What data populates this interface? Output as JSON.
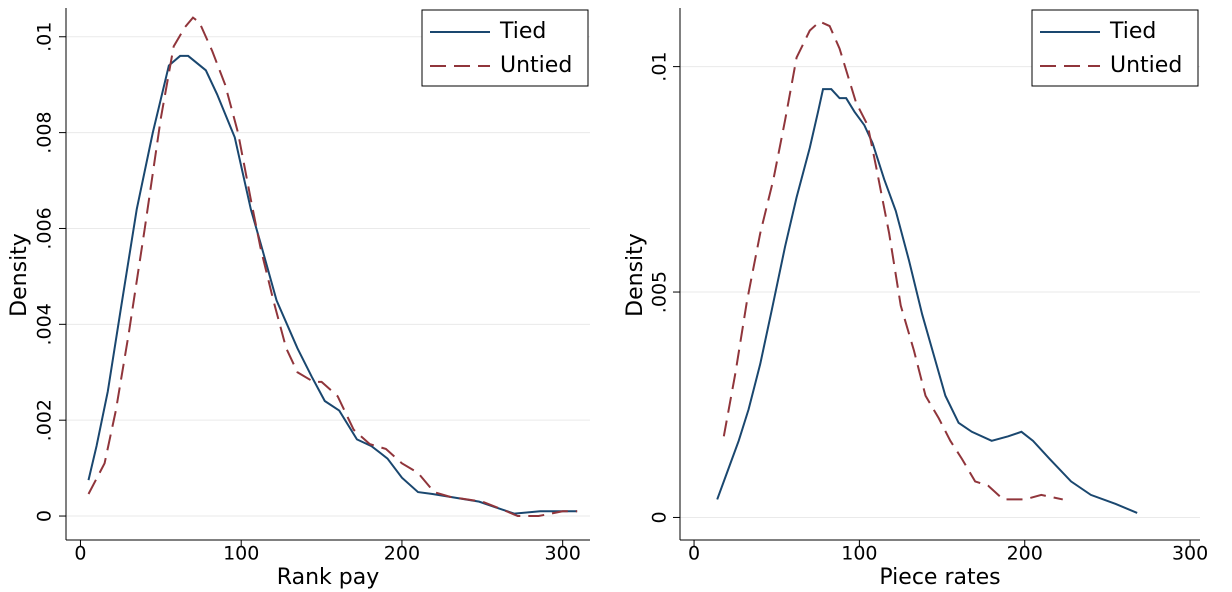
{
  "chart_data": [
    {
      "type": "line",
      "x_label": "Rank pay",
      "y_label": "Density",
      "xlim": [
        -9,
        317
      ],
      "ylim": [
        -0.0005,
        0.0106
      ],
      "xticks": [
        0,
        100,
        200,
        300
      ],
      "yticks": [
        0,
        {
          "value": 0.002,
          "label": ".002"
        },
        {
          "value": 0.004,
          "label": ".004"
        },
        {
          "value": 0.006,
          "label": ".006"
        },
        {
          "value": 0.008,
          "label": ".008"
        },
        {
          "value": 0.01,
          "label": ".01"
        }
      ],
      "grid": true,
      "legend": "top right",
      "series": [
        {
          "name": "Tied",
          "color": "#1a476f",
          "line_style": "solid",
          "x": [
            5,
            10,
            17,
            25,
            35,
            45,
            55,
            62,
            67,
            78,
            85,
            96,
            106,
            112,
            122,
            135,
            144,
            152,
            161,
            172,
            181,
            191,
            200,
            210,
            219,
            230,
            248,
            261,
            270,
            286,
            301,
            309
          ],
          "values": [
            0.00075,
            0.00146,
            0.0026,
            0.0043,
            0.0064,
            0.008,
            0.0094,
            0.0096,
            0.0096,
            0.0093,
            0.0088,
            0.0079,
            0.0064,
            0.0057,
            0.0045,
            0.0035,
            0.0029,
            0.0024,
            0.0022,
            0.0016,
            0.00146,
            0.0012,
            0.0008,
            0.0005,
            0.00046,
            0.0004,
            0.0003,
            0.00015,
            5e-05,
            0.0001,
            0.0001,
            0.0001
          ]
        },
        {
          "name": "Untied",
          "color": "#90353b",
          "line_style": "dashed",
          "x": [
            5,
            15,
            22,
            30,
            40,
            50,
            58,
            65,
            70,
            74,
            82,
            90,
            98,
            106,
            112,
            120,
            128,
            135,
            145,
            150,
            160,
            170,
            180,
            190,
            200,
            210,
            220,
            230,
            250,
            265,
            272,
            285,
            300,
            309
          ],
          "values": [
            0.00046,
            0.0011,
            0.0022,
            0.0038,
            0.006,
            0.0083,
            0.0098,
            0.0102,
            0.0104,
            0.0103,
            0.0097,
            0.009,
            0.008,
            0.0066,
            0.0056,
            0.0045,
            0.0035,
            0.003,
            0.0028,
            0.0028,
            0.0025,
            0.0018,
            0.0015,
            0.0014,
            0.0011,
            0.0009,
            0.0005,
            0.0004,
            0.0003,
            0.0001,
            0,
            0,
            0.0001,
            0.0001
          ]
        }
      ]
    },
    {
      "type": "line",
      "x_label": "Piece rates",
      "y_label": "Density",
      "xlim": [
        -8.5,
        306
      ],
      "ylim": [
        -0.0005,
        0.0113
      ],
      "xticks": [
        0,
        100,
        200,
        300
      ],
      "yticks": [
        0,
        {
          "value": 0.005,
          "label": ".005"
        },
        {
          "value": 0.01,
          "label": ".01"
        }
      ],
      "grid": true,
      "legend": "top right",
      "series": [
        {
          "name": "Tied",
          "color": "#1a476f",
          "line_style": "solid",
          "x": [
            14,
            20,
            27,
            33,
            40,
            47,
            55,
            62,
            70,
            75,
            78,
            83,
            88,
            92,
            97,
            103,
            108,
            115,
            122,
            130,
            138,
            145,
            152,
            160,
            168,
            180,
            190,
            198,
            205,
            215,
            228,
            240,
            255,
            268
          ],
          "values": [
            0.0004,
            0.001,
            0.0017,
            0.0024,
            0.0034,
            0.0046,
            0.006,
            0.0071,
            0.0082,
            0.009,
            0.0095,
            0.0095,
            0.0093,
            0.0093,
            0.009,
            0.0087,
            0.0083,
            0.0075,
            0.0068,
            0.0057,
            0.0045,
            0.0036,
            0.0027,
            0.0021,
            0.0019,
            0.0017,
            0.0018,
            0.0019,
            0.0017,
            0.0013,
            0.0008,
            0.0005,
            0.0003,
            0.0001
          ]
        },
        {
          "name": "Untied",
          "color": "#90353b",
          "line_style": "dashed",
          "x": [
            18,
            25,
            32,
            40,
            48,
            55,
            62,
            70,
            76,
            82,
            88,
            93,
            98,
            105,
            110,
            118,
            125,
            133,
            140,
            148,
            155,
            162,
            170,
            178,
            187,
            200,
            210,
            223
          ],
          "values": [
            0.0018,
            0.0032,
            0.0048,
            0.0063,
            0.0075,
            0.0088,
            0.0102,
            0.0108,
            0.011,
            0.0109,
            0.0104,
            0.0098,
            0.0092,
            0.0087,
            0.0078,
            0.0063,
            0.0047,
            0.0037,
            0.0027,
            0.0022,
            0.0017,
            0.0013,
            0.0008,
            0.0007,
            0.0004,
            0.0004,
            0.0005,
            0.0004
          ]
        }
      ]
    }
  ]
}
